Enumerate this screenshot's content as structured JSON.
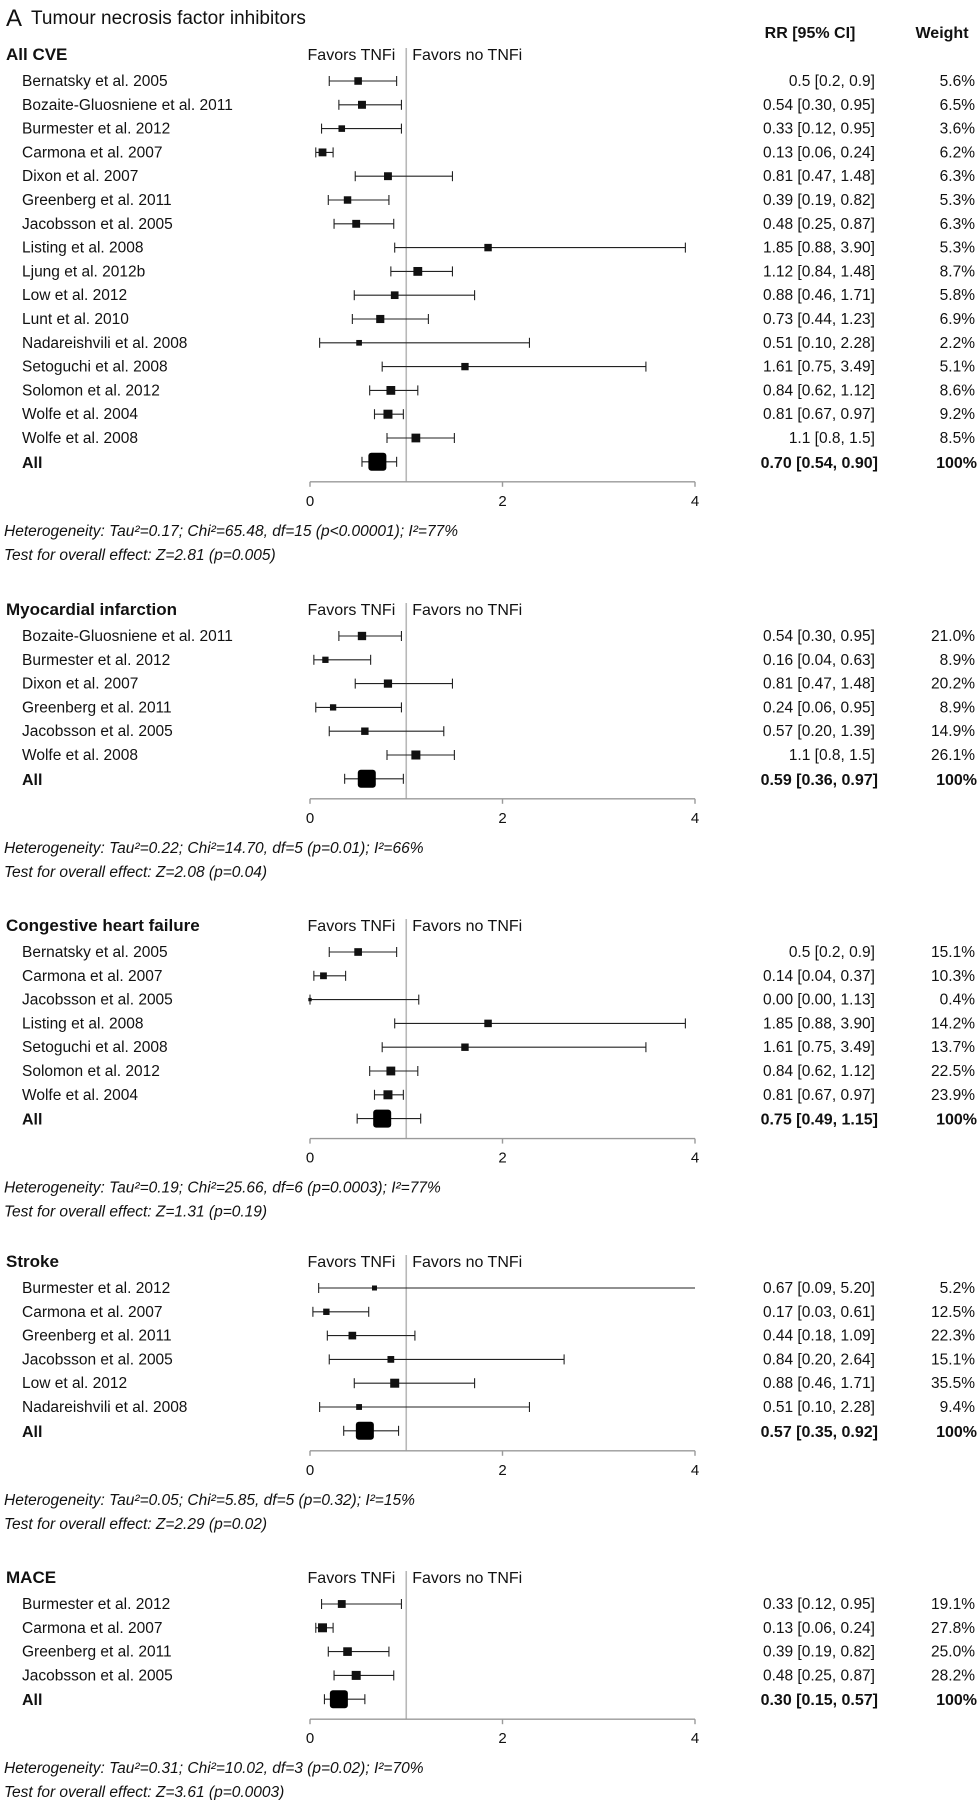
{
  "figure": {
    "panel_letter": "A",
    "title": "Tumour necrosis factor inhibitors",
    "col_rr": "RR [95% CI]",
    "col_weight": "Weight",
    "favors_left": "Favors TNFi",
    "favors_right": "Favors no TNFi"
  },
  "chart_data": [
    {
      "type": "forest",
      "title": "All CVE",
      "xlim": [
        0,
        4
      ],
      "ticks": [
        0,
        2,
        4
      ],
      "null_line": 1,
      "studies": [
        {
          "name": "Bernatsky et al. 2005",
          "rr": 0.5,
          "lo": 0.2,
          "hi": 0.9,
          "rr_text": "0.5 [0.2, 0.9]",
          "weight": "5.6%",
          "w": 5.6
        },
        {
          "name": "Bozaite-Gluosniene et al. 2011",
          "rr": 0.54,
          "lo": 0.3,
          "hi": 0.95,
          "rr_text": "0.54 [0.30, 0.95]",
          "weight": "6.5%",
          "w": 6.5
        },
        {
          "name": "Burmester et al. 2012",
          "rr": 0.33,
          "lo": 0.12,
          "hi": 0.95,
          "rr_text": "0.33 [0.12, 0.95]",
          "weight": "3.6%",
          "w": 3.6
        },
        {
          "name": "Carmona et al. 2007",
          "rr": 0.13,
          "lo": 0.06,
          "hi": 0.24,
          "rr_text": "0.13 [0.06, 0.24]",
          "weight": "6.2%",
          "w": 6.2
        },
        {
          "name": "Dixon et al. 2007",
          "rr": 0.81,
          "lo": 0.47,
          "hi": 1.48,
          "rr_text": "0.81 [0.47, 1.48]",
          "weight": "6.3%",
          "w": 6.3
        },
        {
          "name": "Greenberg et al. 2011",
          "rr": 0.39,
          "lo": 0.19,
          "hi": 0.82,
          "rr_text": "0.39 [0.19, 0.82]",
          "weight": "5.3%",
          "w": 5.3
        },
        {
          "name": "Jacobsson et al. 2005",
          "rr": 0.48,
          "lo": 0.25,
          "hi": 0.87,
          "rr_text": "0.48 [0.25, 0.87]",
          "weight": "6.3%",
          "w": 6.3
        },
        {
          "name": "Listing et al. 2008",
          "rr": 1.85,
          "lo": 0.88,
          "hi": 3.9,
          "rr_text": "1.85 [0.88, 3.90]",
          "weight": "5.3%",
          "w": 5.3
        },
        {
          "name": "Ljung et al. 2012b",
          "rr": 1.12,
          "lo": 0.84,
          "hi": 1.48,
          "rr_text": "1.12 [0.84, 1.48]",
          "weight": "8.7%",
          "w": 8.7
        },
        {
          "name": "Low et al. 2012",
          "rr": 0.88,
          "lo": 0.46,
          "hi": 1.71,
          "rr_text": "0.88 [0.46, 1.71]",
          "weight": "5.8%",
          "w": 5.8
        },
        {
          "name": "Lunt et al. 2010",
          "rr": 0.73,
          "lo": 0.44,
          "hi": 1.23,
          "rr_text": "0.73 [0.44, 1.23]",
          "weight": "6.9%",
          "w": 6.9
        },
        {
          "name": "Nadareishvili et al. 2008",
          "rr": 0.51,
          "lo": 0.1,
          "hi": 2.28,
          "rr_text": "0.51 [0.10, 2.28]",
          "weight": "2.2%",
          "w": 2.2
        },
        {
          "name": "Setoguchi et al. 2008",
          "rr": 1.61,
          "lo": 0.75,
          "hi": 3.49,
          "rr_text": "1.61 [0.75, 3.49]",
          "weight": "5.1%",
          "w": 5.1
        },
        {
          "name": "Solomon et al. 2012",
          "rr": 0.84,
          "lo": 0.62,
          "hi": 1.12,
          "rr_text": "0.84 [0.62, 1.12]",
          "weight": "8.6%",
          "w": 8.6
        },
        {
          "name": "Wolfe et al. 2004",
          "rr": 0.81,
          "lo": 0.67,
          "hi": 0.97,
          "rr_text": "0.81 [0.67, 0.97]",
          "weight": "9.2%",
          "w": 9.2
        },
        {
          "name": "Wolfe et al. 2008",
          "rr": 1.1,
          "lo": 0.8,
          "hi": 1.5,
          "rr_text": "1.1 [0.8, 1.5]",
          "weight": "8.5%",
          "w": 8.5
        }
      ],
      "overall": {
        "name": "All",
        "rr": 0.7,
        "lo": 0.54,
        "hi": 0.9,
        "rr_text": "0.70 [0.54, 0.90]",
        "weight": "100%"
      },
      "heterogeneity": "Heterogeneity: Tau²=0.17; Chi²=65.48, df=15 (p<0.00001); I²=77%",
      "overall_test": "Test for overall effect: Z=2.81 (p=0.005)"
    },
    {
      "type": "forest",
      "title": "Myocardial infarction",
      "xlim": [
        0,
        4
      ],
      "ticks": [
        0,
        2,
        4
      ],
      "null_line": 1,
      "studies": [
        {
          "name": "Bozaite-Gluosniene et al. 2011",
          "rr": 0.54,
          "lo": 0.3,
          "hi": 0.95,
          "rr_text": "0.54 [0.30, 0.95]",
          "weight": "21.0%",
          "w": 21.0
        },
        {
          "name": "Burmester et al. 2012",
          "rr": 0.16,
          "lo": 0.04,
          "hi": 0.63,
          "rr_text": "0.16 [0.04, 0.63]",
          "weight": "8.9%",
          "w": 8.9
        },
        {
          "name": "Dixon et al. 2007",
          "rr": 0.81,
          "lo": 0.47,
          "hi": 1.48,
          "rr_text": "0.81 [0.47, 1.48]",
          "weight": "20.2%",
          "w": 20.2
        },
        {
          "name": "Greenberg et al. 2011",
          "rr": 0.24,
          "lo": 0.06,
          "hi": 0.95,
          "rr_text": "0.24 [0.06, 0.95]",
          "weight": "8.9%",
          "w": 8.9
        },
        {
          "name": "Jacobsson et al. 2005",
          "rr": 0.57,
          "lo": 0.2,
          "hi": 1.39,
          "rr_text": "0.57 [0.20, 1.39]",
          "weight": "14.9%",
          "w": 14.9
        },
        {
          "name": "Wolfe et al. 2008",
          "rr": 1.1,
          "lo": 0.8,
          "hi": 1.5,
          "rr_text": "1.1 [0.8, 1.5]",
          "weight": "26.1%",
          "w": 26.1
        }
      ],
      "overall": {
        "name": "All",
        "rr": 0.59,
        "lo": 0.36,
        "hi": 0.97,
        "rr_text": "0.59 [0.36, 0.97]",
        "weight": "100%"
      },
      "heterogeneity": "Heterogeneity: Tau²=0.22; Chi²=14.70, df=5 (p=0.01); I²=66%",
      "overall_test": "Test for overall effect: Z=2.08 (p=0.04)"
    },
    {
      "type": "forest",
      "title": "Congestive heart failure",
      "xlim": [
        0,
        4
      ],
      "ticks": [
        0,
        2,
        4
      ],
      "null_line": 1,
      "studies": [
        {
          "name": "Bernatsky et al. 2005",
          "rr": 0.5,
          "lo": 0.2,
          "hi": 0.9,
          "rr_text": "0.5 [0.2, 0.9]",
          "weight": "15.1%",
          "w": 15.1
        },
        {
          "name": "Carmona et al. 2007",
          "rr": 0.14,
          "lo": 0.04,
          "hi": 0.37,
          "rr_text": "0.14 [0.04, 0.37]",
          "weight": "10.3%",
          "w": 10.3
        },
        {
          "name": "Jacobsson et al. 2005",
          "rr": 0.0,
          "lo": 0.0,
          "hi": 1.13,
          "rr_text": "0.00 [0.00, 1.13]",
          "weight": "0.4%",
          "w": 0.4
        },
        {
          "name": "Listing et al. 2008",
          "rr": 1.85,
          "lo": 0.88,
          "hi": 3.9,
          "rr_text": "1.85 [0.88, 3.90]",
          "weight": "14.2%",
          "w": 14.2
        },
        {
          "name": "Setoguchi et al. 2008",
          "rr": 1.61,
          "lo": 0.75,
          "hi": 3.49,
          "rr_text": "1.61 [0.75, 3.49]",
          "weight": "13.7%",
          "w": 13.7
        },
        {
          "name": "Solomon et al. 2012",
          "rr": 0.84,
          "lo": 0.62,
          "hi": 1.12,
          "rr_text": "0.84 [0.62, 1.12]",
          "weight": "22.5%",
          "w": 22.5
        },
        {
          "name": "Wolfe et al. 2004",
          "rr": 0.81,
          "lo": 0.67,
          "hi": 0.97,
          "rr_text": "0.81 [0.67, 0.97]",
          "weight": "23.9%",
          "w": 23.9
        }
      ],
      "overall": {
        "name": "All",
        "rr": 0.75,
        "lo": 0.49,
        "hi": 1.15,
        "rr_text": "0.75 [0.49, 1.15]",
        "weight": "100%"
      },
      "heterogeneity": "Heterogeneity: Tau²=0.19; Chi²=25.66, df=6 (p=0.0003); I²=77%",
      "overall_test": "Test for overall effect: Z=1.31 (p=0.19)"
    },
    {
      "type": "forest",
      "title": "Stroke",
      "xlim": [
        0,
        4
      ],
      "ticks": [
        0,
        2,
        4
      ],
      "null_line": 1,
      "studies": [
        {
          "name": "Burmester et al. 2012",
          "rr": 0.67,
          "lo": 0.09,
          "hi": 5.2,
          "rr_text": "0.67 [0.09, 5.20]",
          "weight": "5.2%",
          "w": 5.2
        },
        {
          "name": "Carmona et al. 2007",
          "rr": 0.17,
          "lo": 0.03,
          "hi": 0.61,
          "rr_text": "0.17 [0.03, 0.61]",
          "weight": "12.5%",
          "w": 12.5
        },
        {
          "name": "Greenberg et al. 2011",
          "rr": 0.44,
          "lo": 0.18,
          "hi": 1.09,
          "rr_text": "0.44 [0.18, 1.09]",
          "weight": "22.3%",
          "w": 22.3
        },
        {
          "name": "Jacobsson et al. 2005",
          "rr": 0.84,
          "lo": 0.2,
          "hi": 2.64,
          "rr_text": "0.84 [0.20, 2.64]",
          "weight": "15.1%",
          "w": 15.1
        },
        {
          "name": "Low et al. 2012",
          "rr": 0.88,
          "lo": 0.46,
          "hi": 1.71,
          "rr_text": "0.88 [0.46, 1.71]",
          "weight": "35.5%",
          "w": 35.5
        },
        {
          "name": "Nadareishvili et al. 2008",
          "rr": 0.51,
          "lo": 0.1,
          "hi": 2.28,
          "rr_text": "0.51 [0.10, 2.28]",
          "weight": "9.4%",
          "w": 9.4
        }
      ],
      "overall": {
        "name": "All",
        "rr": 0.57,
        "lo": 0.35,
        "hi": 0.92,
        "rr_text": "0.57 [0.35, 0.92]",
        "weight": "100%"
      },
      "heterogeneity": "Heterogeneity: Tau²=0.05; Chi²=5.85, df=5 (p=0.32); I²=15%",
      "overall_test": "Test for overall effect: Z=2.29 (p=0.02)"
    },
    {
      "type": "forest",
      "title": "MACE",
      "xlim": [
        0,
        4
      ],
      "ticks": [
        0,
        2,
        4
      ],
      "null_line": 1,
      "studies": [
        {
          "name": "Burmester et al. 2012",
          "rr": 0.33,
          "lo": 0.12,
          "hi": 0.95,
          "rr_text": "0.33 [0.12, 0.95]",
          "weight": "19.1%",
          "w": 19.1
        },
        {
          "name": "Carmona et al. 2007",
          "rr": 0.13,
          "lo": 0.06,
          "hi": 0.24,
          "rr_text": "0.13 [0.06, 0.24]",
          "weight": "27.8%",
          "w": 27.8
        },
        {
          "name": "Greenberg et al. 2011",
          "rr": 0.39,
          "lo": 0.19,
          "hi": 0.82,
          "rr_text": "0.39 [0.19, 0.82]",
          "weight": "25.0%",
          "w": 25.0
        },
        {
          "name": "Jacobsson et al. 2005",
          "rr": 0.48,
          "lo": 0.25,
          "hi": 0.87,
          "rr_text": "0.48 [0.25, 0.87]",
          "weight": "28.2%",
          "w": 28.2
        }
      ],
      "overall": {
        "name": "All",
        "rr": 0.3,
        "lo": 0.15,
        "hi": 0.57,
        "rr_text": "0.30 [0.15, 0.57]",
        "weight": "100%"
      },
      "heterogeneity": "Heterogeneity: Tau²=0.31; Chi²=10.02, df=3 (p=0.02); I²=70%",
      "overall_test": "Test for overall effect: Z=3.61 (p=0.0003)"
    }
  ]
}
